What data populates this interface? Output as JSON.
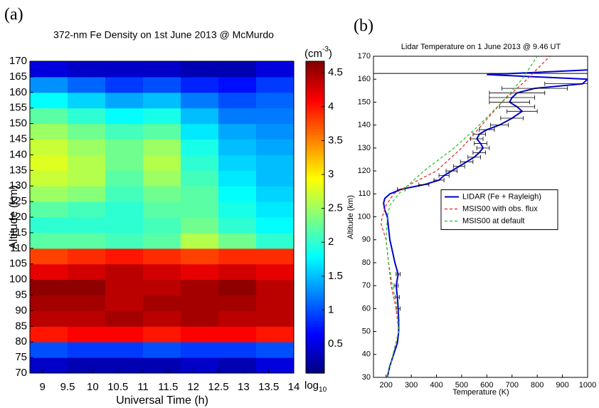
{
  "chart_data": [
    {
      "type": "heatmap",
      "panel_label": "(a)",
      "title": "372-nm Fe Density on 1st June 2013 @ McMurdo",
      "x_label": "Universal Time (h)",
      "y_label": "Altitude (km)",
      "colorbar_unit": {
        "base": "(cm",
        "exponent": "-3",
        "close": ")"
      },
      "colorbar_scale": {
        "base": "log",
        "subscript": "10"
      },
      "xlim": [
        8.75,
        14
      ],
      "xticks": [
        9,
        9.5,
        10,
        10.5,
        11,
        11.5,
        12,
        12.5,
        13,
        13.5,
        14
      ],
      "ylim": [
        70,
        170
      ],
      "yticks": [
        70,
        75,
        80,
        85,
        90,
        95,
        100,
        105,
        110,
        115,
        120,
        125,
        130,
        135,
        140,
        145,
        150,
        155,
        160,
        165,
        170
      ],
      "clim": [
        0.07,
        4.67
      ],
      "cticks": [
        0.5,
        1,
        1.5,
        2,
        2.5,
        3,
        3.5,
        4,
        4.5
      ],
      "x_edges": [
        8.75,
        9.5,
        10.25,
        11,
        11.75,
        12.5,
        13.25,
        14
      ],
      "y_edges": [
        70,
        75,
        80,
        85,
        90,
        95,
        100,
        105,
        110,
        115,
        120,
        125,
        130,
        135,
        140,
        145,
        150,
        155,
        160,
        165,
        170
      ],
      "values": [
        [
          0.4,
          0.3,
          0.3,
          0.3,
          0.4,
          0.3,
          0.5
        ],
        [
          1.0,
          0.9,
          0.9,
          1.0,
          0.9,
          0.9,
          1.0
        ],
        [
          4.0,
          4.1,
          4.1,
          4.0,
          4.1,
          4.1,
          4.0
        ],
        [
          4.4,
          4.4,
          4.5,
          4.4,
          4.5,
          4.4,
          4.4
        ],
        [
          4.5,
          4.5,
          4.4,
          4.5,
          4.5,
          4.5,
          4.4
        ],
        [
          4.6,
          4.6,
          4.4,
          4.4,
          4.5,
          4.6,
          4.4
        ],
        [
          4.2,
          4.3,
          4.4,
          4.3,
          4.2,
          4.3,
          4.2
        ],
        [
          3.8,
          3.9,
          4.0,
          3.9,
          3.8,
          3.9,
          3.9
        ],
        [
          2.2,
          2.2,
          2.1,
          2.2,
          2.6,
          2.3,
          2.0
        ],
        [
          2.0,
          2.0,
          2.0,
          2.1,
          2.3,
          2.0,
          1.8
        ],
        [
          2.2,
          2.1,
          2.0,
          2.2,
          2.2,
          1.9,
          1.7
        ],
        [
          2.5,
          2.4,
          2.1,
          2.3,
          2.2,
          1.8,
          1.6
        ],
        [
          2.7,
          2.6,
          2.2,
          2.5,
          2.1,
          1.7,
          1.5
        ],
        [
          2.8,
          2.6,
          2.3,
          2.6,
          2.0,
          1.6,
          1.5
        ],
        [
          2.7,
          2.5,
          2.3,
          2.5,
          1.9,
          1.5,
          1.4
        ],
        [
          2.5,
          2.3,
          2.1,
          2.2,
          1.7,
          1.4,
          1.3
        ],
        [
          2.2,
          2.0,
          1.8,
          1.9,
          1.5,
          1.2,
          1.2
        ],
        [
          1.8,
          1.6,
          1.4,
          1.5,
          1.2,
          1.0,
          1.1
        ],
        [
          1.3,
          1.1,
          0.9,
          1.0,
          0.8,
          0.7,
          0.9
        ],
        [
          0.5,
          0.4,
          0.4,
          0.4,
          0.3,
          0.3,
          0.5
        ]
      ]
    },
    {
      "type": "line",
      "panel_label": "(b)",
      "title": "Lidar Temperature on 1 June 2013 @ 9.46 UT",
      "x_label": "Temperature (K)",
      "y_label": "Altitude (km)",
      "xlim": [
        150,
        1000
      ],
      "xticks": [
        200,
        300,
        400,
        500,
        600,
        700,
        800,
        900,
        1000
      ],
      "ylim": [
        30,
        170
      ],
      "yticks": [
        30,
        40,
        50,
        60,
        70,
        80,
        90,
        100,
        110,
        120,
        130,
        140,
        150,
        160,
        170
      ],
      "hline": 162.5,
      "legend": "right",
      "series": [
        {
          "name": "LIDAR (Fe + Rayleigh)",
          "color": "#0000cc",
          "dash": "solid",
          "values": [
            205,
            215,
            230,
            245,
            250,
            250,
            248,
            245,
            240,
            248,
            235,
            225,
            215,
            210,
            205,
            195,
            190,
            195,
            215,
            260,
            350,
            410,
            430,
            460,
            490,
            520,
            550,
            570,
            585,
            575,
            560,
            570,
            600,
            650,
            700,
            740,
            720,
            690,
            700,
            720,
            790,
            980,
            1000,
            600,
            1000
          ],
          "altitude": [
            30,
            35,
            40,
            45,
            50,
            55,
            60,
            65,
            70,
            75,
            80,
            85,
            90,
            95,
            100,
            103,
            106,
            108,
            110,
            112,
            114,
            116,
            118,
            120,
            122,
            124,
            126,
            128,
            130,
            132,
            134,
            136,
            138,
            140,
            143,
            146,
            148,
            150,
            152,
            154,
            156,
            158,
            160,
            162,
            164
          ],
          "errors": [
            null,
            null,
            null,
            null,
            null,
            null,
            8,
            8,
            8,
            8,
            null,
            null,
            null,
            null,
            null,
            null,
            null,
            null,
            null,
            15,
            20,
            20,
            20,
            22,
            22,
            25,
            25,
            25,
            25,
            25,
            25,
            25,
            30,
            35,
            45,
            60,
            70,
            80,
            90,
            110,
            130,
            150,
            null,
            null,
            null
          ]
        },
        {
          "name": "MSIS00 with obs. flux",
          "color": "#e02020",
          "dash": "dashed",
          "values": [
            205,
            250,
            240,
            220,
            210,
            200,
            180,
            185,
            200,
            230,
            310,
            400,
            500,
            580,
            660,
            760,
            850
          ],
          "altitude": [
            30,
            50,
            60,
            70,
            80,
            90,
            97,
            100,
            105,
            110,
            115,
            120,
            130,
            140,
            150,
            160,
            170
          ]
        },
        {
          "name": "MSIS00 at default",
          "color": "#20c020",
          "dash": "dashed",
          "values": [
            205,
            250,
            245,
            225,
            210,
            200,
            205,
            215,
            250,
            350,
            470,
            570,
            660,
            740,
            800
          ],
          "altitude": [
            30,
            50,
            60,
            70,
            80,
            90,
            100,
            105,
            110,
            120,
            130,
            140,
            150,
            160,
            170
          ]
        }
      ]
    }
  ]
}
